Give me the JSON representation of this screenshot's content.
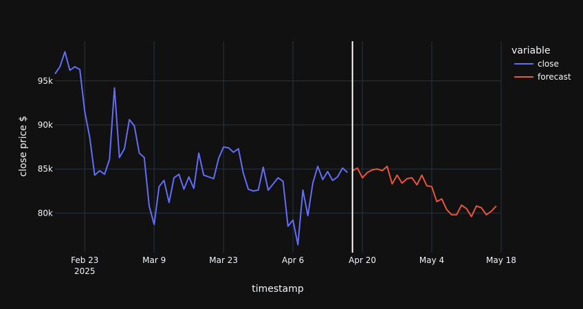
{
  "chart_data": {
    "type": "line",
    "title": "",
    "xlabel": "timestamp",
    "ylabel": "close price $",
    "xlim": [
      "2025-02-17",
      "2025-05-18"
    ],
    "ylim": [
      75500,
      99500
    ],
    "x_ticks": [
      {
        "date": "2025-02-23",
        "label": "Feb 23",
        "sublabel": "2025"
      },
      {
        "date": "2025-03-09",
        "label": "Mar 9",
        "sublabel": ""
      },
      {
        "date": "2025-03-23",
        "label": "Mar 23",
        "sublabel": ""
      },
      {
        "date": "2025-04-06",
        "label": "Apr 6",
        "sublabel": ""
      },
      {
        "date": "2025-04-20",
        "label": "Apr 20",
        "sublabel": ""
      },
      {
        "date": "2025-05-04",
        "label": "May 4",
        "sublabel": ""
      },
      {
        "date": "2025-05-18",
        "label": "May 18",
        "sublabel": ""
      }
    ],
    "y_ticks": [
      {
        "value": 80000,
        "label": "80k"
      },
      {
        "value": 85000,
        "label": "85k"
      },
      {
        "value": 90000,
        "label": "90k"
      },
      {
        "value": 95000,
        "label": "95k"
      }
    ],
    "vertical_line": {
      "date": "2025-04-18",
      "color": "#ffffff"
    },
    "grid": true,
    "legend": {
      "title": "variable",
      "position": "top-right"
    },
    "series": [
      {
        "name": "close",
        "color": "#636efa",
        "points": [
          [
            "2025-02-17",
            95800
          ],
          [
            "2025-02-18",
            96600
          ],
          [
            "2025-02-19",
            98300
          ],
          [
            "2025-02-20",
            96200
          ],
          [
            "2025-02-21",
            96600
          ],
          [
            "2025-02-22",
            96300
          ],
          [
            "2025-02-23",
            91500
          ],
          [
            "2025-02-24",
            88600
          ],
          [
            "2025-02-25",
            84300
          ],
          [
            "2025-02-26",
            84800
          ],
          [
            "2025-02-27",
            84400
          ],
          [
            "2025-02-28",
            86100
          ],
          [
            "2025-03-01",
            94200
          ],
          [
            "2025-03-02",
            86300
          ],
          [
            "2025-03-03",
            87300
          ],
          [
            "2025-03-04",
            90600
          ],
          [
            "2025-03-05",
            89900
          ],
          [
            "2025-03-06",
            86800
          ],
          [
            "2025-03-07",
            86300
          ],
          [
            "2025-03-08",
            80800
          ],
          [
            "2025-03-09",
            78700
          ],
          [
            "2025-03-10",
            83000
          ],
          [
            "2025-03-11",
            83700
          ],
          [
            "2025-03-12",
            81200
          ],
          [
            "2025-03-13",
            84000
          ],
          [
            "2025-03-14",
            84400
          ],
          [
            "2025-03-15",
            82700
          ],
          [
            "2025-03-16",
            84100
          ],
          [
            "2025-03-17",
            82800
          ],
          [
            "2025-03-18",
            86800
          ],
          [
            "2025-03-19",
            84300
          ],
          [
            "2025-03-20",
            84100
          ],
          [
            "2025-03-21",
            83900
          ],
          [
            "2025-03-22",
            86200
          ],
          [
            "2025-03-23",
            87500
          ],
          [
            "2025-03-24",
            87400
          ],
          [
            "2025-03-25",
            86900
          ],
          [
            "2025-03-26",
            87300
          ],
          [
            "2025-03-27",
            84500
          ],
          [
            "2025-03-28",
            82700
          ],
          [
            "2025-03-29",
            82500
          ],
          [
            "2025-03-30",
            82600
          ],
          [
            "2025-03-31",
            85200
          ],
          [
            "2025-04-01",
            82600
          ],
          [
            "2025-04-02",
            83300
          ],
          [
            "2025-04-03",
            84000
          ],
          [
            "2025-04-04",
            83600
          ],
          [
            "2025-04-05",
            78500
          ],
          [
            "2025-04-06",
            79200
          ],
          [
            "2025-04-07",
            76400
          ],
          [
            "2025-04-08",
            82600
          ],
          [
            "2025-04-09",
            79700
          ],
          [
            "2025-04-10",
            83400
          ],
          [
            "2025-04-11",
            85300
          ],
          [
            "2025-04-12",
            83800
          ],
          [
            "2025-04-13",
            84700
          ],
          [
            "2025-04-14",
            83700
          ],
          [
            "2025-04-15",
            84100
          ],
          [
            "2025-04-16",
            85100
          ],
          [
            "2025-04-17",
            84600
          ]
        ]
      },
      {
        "name": "forecast",
        "color": "#ef553b",
        "points": [
          [
            "2025-04-18",
            84800
          ],
          [
            "2025-04-19",
            85100
          ],
          [
            "2025-04-20",
            84000
          ],
          [
            "2025-04-21",
            84600
          ],
          [
            "2025-04-22",
            84900
          ],
          [
            "2025-04-23",
            85000
          ],
          [
            "2025-04-24",
            84800
          ],
          [
            "2025-04-25",
            85300
          ],
          [
            "2025-04-26",
            83300
          ],
          [
            "2025-04-27",
            84300
          ],
          [
            "2025-04-28",
            83400
          ],
          [
            "2025-04-29",
            83900
          ],
          [
            "2025-04-30",
            84000
          ],
          [
            "2025-05-01",
            83200
          ],
          [
            "2025-05-02",
            84300
          ],
          [
            "2025-05-03",
            83100
          ],
          [
            "2025-05-04",
            83000
          ],
          [
            "2025-05-05",
            81300
          ],
          [
            "2025-05-06",
            81600
          ],
          [
            "2025-05-07",
            80400
          ],
          [
            "2025-05-08",
            79800
          ],
          [
            "2025-05-09",
            79800
          ],
          [
            "2025-05-10",
            80900
          ],
          [
            "2025-05-11",
            80500
          ],
          [
            "2025-05-12",
            79600
          ],
          [
            "2025-05-13",
            80800
          ],
          [
            "2025-05-14",
            80600
          ],
          [
            "2025-05-15",
            79800
          ],
          [
            "2025-05-16",
            80200
          ],
          [
            "2025-05-17",
            80800
          ]
        ]
      }
    ]
  }
}
